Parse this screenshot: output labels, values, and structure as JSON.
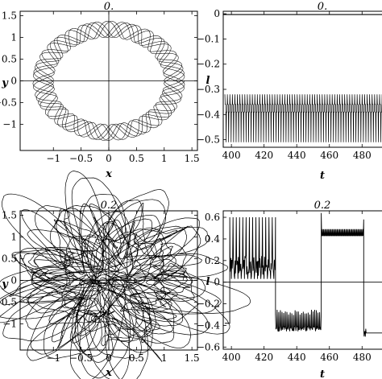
{
  "figure": {
    "panel_count": 4,
    "line_color": "#000000",
    "background": "#ffffff"
  },
  "chart_data": [
    {
      "type": "line",
      "title": "0.",
      "xlabel": "x",
      "ylabel": "y",
      "xlim": [
        -1.6,
        1.6
      ],
      "ylim": [
        -1.6,
        1.6
      ],
      "xticks": [
        -1,
        -0.5,
        0,
        0.5,
        1,
        1.5
      ],
      "xticklabels": [
        "−1",
        "−0.5",
        "0",
        "0.5",
        "1",
        "1.5"
      ],
      "yticks": [
        -1,
        -0.5,
        0,
        0.5,
        1,
        1.5
      ],
      "yticklabels": [
        "−1",
        "−0.5",
        "0",
        "0.5",
        "1",
        "1.5"
      ],
      "axes_cross_origin": true,
      "series": [
        {
          "shape": "annulus-orbit",
          "inner_radius": 1.0,
          "outer_radius": 1.37
        }
      ]
    },
    {
      "type": "line",
      "title": "0.",
      "xlabel": "t",
      "ylabel": "l",
      "xlim": [
        395,
        507
      ],
      "ylim": [
        -0.53,
        0.01
      ],
      "xticks": [
        400,
        420,
        440,
        460,
        480,
        500
      ],
      "xticklabels": [
        "400",
        "420",
        "440",
        "460",
        "480",
        "500"
      ],
      "yticks": [
        0,
        -0.1,
        -0.2,
        -0.3,
        -0.4,
        -0.5
      ],
      "yticklabels": [
        "0",
        "−0.1",
        "−0.2",
        "−0.3",
        "−0.4",
        "−0.5"
      ],
      "series": [
        {
          "shape": "flat-line",
          "y": -0.003
        },
        {
          "shape": "fast-oscillation",
          "upper": -0.32,
          "lower": -0.51,
          "midline": -0.38,
          "cycles": 72
        }
      ]
    },
    {
      "type": "line",
      "title": "0.2",
      "xlabel": "x",
      "ylabel": "y",
      "xlim": [
        -1.6,
        1.6
      ],
      "ylim": [
        -1.6,
        1.6
      ],
      "xticks": [
        -1,
        -0.5,
        0,
        0.5,
        1,
        1.5
      ],
      "xticklabels": [
        "−1",
        "−0.5",
        "0",
        "0.5",
        "1",
        "1.5"
      ],
      "yticks": [
        -1,
        -0.5,
        0,
        0.5,
        1,
        1.5
      ],
      "yticklabels": [
        "−1",
        "−0.5",
        "0",
        "0.5",
        "1",
        "1.5"
      ],
      "axes_cross_origin": true,
      "series": [
        {
          "shape": "chaotic-orbit",
          "mean_radius": 1.05,
          "loop_radius": 0.3
        }
      ]
    },
    {
      "type": "line",
      "title": "0.2",
      "xlabel": "t",
      "ylabel": "l",
      "xlim": [
        395,
        507
      ],
      "ylim": [
        -0.62,
        0.66
      ],
      "xticks": [
        400,
        420,
        440,
        460,
        480,
        500
      ],
      "xticklabels": [
        "400",
        "420",
        "440",
        "460",
        "480",
        "500"
      ],
      "yticks": [
        0.6,
        0.4,
        0.2,
        0,
        -0.2,
        -0.4,
        -0.6
      ],
      "yticklabels": [
        "0.6",
        "0.4",
        "0.2",
        "0",
        "−0.2",
        "−0.4",
        "−0.6"
      ],
      "axes_cross_zero": true,
      "series": [
        {
          "shape": "switching-signal",
          "segments": [
            {
              "t": [
                396,
                399
              ],
              "level": -0.38
            },
            {
              "t": [
                399,
                427
              ],
              "level": 0.15
            },
            {
              "t": [
                427,
                455
              ],
              "level": -0.38
            },
            {
              "t": [
                455,
                481
              ],
              "level": 0.45
            },
            {
              "t": [
                481,
                505
              ],
              "level": -0.47
            }
          ]
        }
      ]
    }
  ]
}
